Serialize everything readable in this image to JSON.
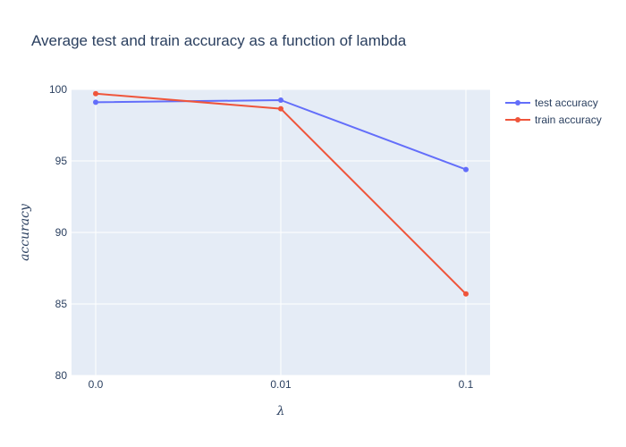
{
  "chart_data": {
    "type": "line",
    "title": "Average test and train accuracy as a function of lambda",
    "xlabel": "λ",
    "ylabel": "accuracy",
    "categories": [
      "0.0",
      "0.01",
      "0.1"
    ],
    "ylim": [
      80,
      100
    ],
    "yticks": [
      80,
      85,
      90,
      95,
      100
    ],
    "grid": true,
    "legend_position": "top-right",
    "series": [
      {
        "name": "test accuracy",
        "color": "#636efa",
        "values": [
          99.1,
          99.25,
          94.4
        ]
      },
      {
        "name": "train accuracy",
        "color": "#ef553b",
        "values": [
          99.7,
          98.65,
          85.7
        ]
      }
    ]
  },
  "colors": {
    "plot_background": "#e5ecf6",
    "gridline": "#ffffff",
    "text": "#2a3f5f"
  }
}
